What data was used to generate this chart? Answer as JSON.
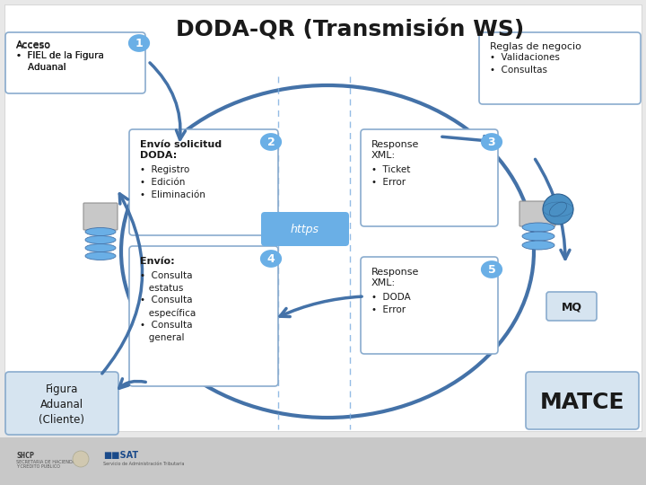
{
  "title": "DODA-QR (Transmisión WS)",
  "title_fontsize": 18,
  "bg_color": "#e8e8e8",
  "white_bg": "#f5f5f5",
  "box_fill": "#ffffff",
  "box_edge": "#8aaecf",
  "circle_color": "#6aafe6",
  "https_fill": "#6aafe6",
  "https_text": "https",
  "arrow_color": "#4472a8",
  "dashed_color": "#7aacdf",
  "acceso_title": "Acceso",
  "acceso_bullet": "•  FIEL de la Figura\n    Aduanal",
  "reglas_title": "Reglas de negocio",
  "reglas_bullets": "•  Validaciones\n•  Consultas",
  "box2_title": "Envío solicitud\nDODA:",
  "box2_bullets": "•  Registro\n•  Edición\n•  Eliminación",
  "box3_title": "Response\nXML:",
  "box3_bullets": "•  Ticket\n•  Error",
  "box4_title": "Envío:",
  "box4_bullets": "•  Consulta\n   estatus\n•  Consulta\n   específica\n•  Consulta\n   general",
  "box5_title": "Response\nXML:",
  "box5_bullets": "•  DODA\n•  Error",
  "figura_text": "Figura\nAduanal\n(Cliente)",
  "matce_text": "MATCE",
  "mq_text": "MQ",
  "nums": [
    "1",
    "2",
    "3",
    "4",
    "5"
  ],
  "footer_bg": "#c8c8c8",
  "shcp_text": "SHCP",
  "sat_text": "SAT"
}
